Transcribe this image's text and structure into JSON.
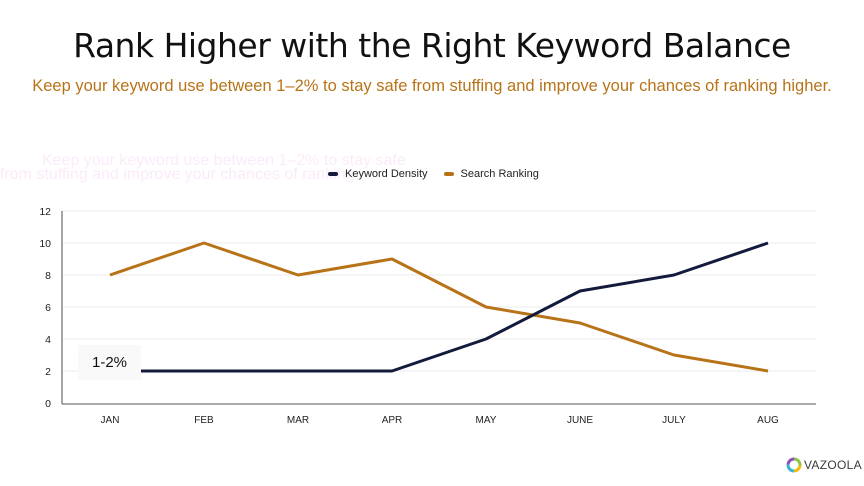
{
  "header": {
    "title": "Rank Higher with the Right Keyword Balance",
    "subtitle": "Keep your keyword use between 1–2% to stay safe from stuffing and improve your chances of ranking higher."
  },
  "annotation": {
    "range_label": "1-2%"
  },
  "legend": {
    "items": [
      {
        "label": "Keyword Density",
        "color": "#141a3c"
      },
      {
        "label": "Search Ranking",
        "color": "#b87318"
      }
    ]
  },
  "branding": {
    "logo_text": "VAZOOLA"
  },
  "colors": {
    "keyword_density": "#141a3c",
    "search_ranking": "#b87318",
    "subtitle": "#b87318",
    "grid": "#ebebeb",
    "axis": "#777777"
  },
  "chart_data": {
    "type": "line",
    "title": "Rank Higher with the Right Keyword Balance",
    "subtitle": "Keep your keyword use between 1–2% to stay safe from stuffing and improve your chances of ranking higher.",
    "categories": [
      "JAN",
      "FEB",
      "MAR",
      "APR",
      "MAY",
      "JUNE",
      "JULY",
      "AUG"
    ],
    "series": [
      {
        "name": "Keyword Density",
        "color": "#141a3c",
        "values": [
          2,
          2,
          2,
          2,
          4,
          7,
          8,
          10
        ]
      },
      {
        "name": "Search Ranking",
        "color": "#b87318",
        "values": [
          8,
          10,
          8,
          9,
          6,
          5,
          3,
          2
        ]
      }
    ],
    "xlabel": "",
    "ylabel": "",
    "ylim": [
      0,
      12
    ],
    "yticks": [
      0,
      2,
      4,
      6,
      8,
      10,
      12
    ],
    "grid": true,
    "legend_position": "top",
    "annotations": [
      {
        "text": "1-2%",
        "x": "JAN",
        "y": 2
      }
    ]
  }
}
